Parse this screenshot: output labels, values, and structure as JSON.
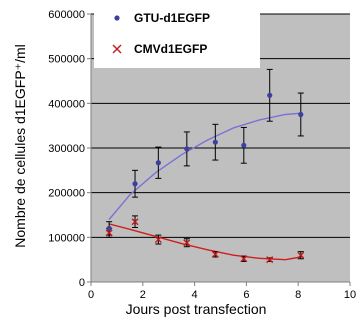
{
  "chart_data": {
    "type": "scatter",
    "title": "",
    "xlabel": "Jours post transfection",
    "ylabel": "Nombre de cellules d1EGFP⁺/ml",
    "xlim": [
      0,
      10
    ],
    "ylim": [
      0,
      600000
    ],
    "x_ticks": [
      0,
      2,
      4,
      6,
      8,
      10
    ],
    "y_ticks": [
      0,
      100000,
      200000,
      300000,
      400000,
      500000,
      600000
    ],
    "x_tick_labels": [
      "0",
      "2",
      "4",
      "6",
      "8",
      "10"
    ],
    "y_tick_labels": [
      "0",
      "100000",
      "200000",
      "300000",
      "400000",
      "500000",
      "600000"
    ],
    "grid": "horizontal",
    "plot_background": "#bfbfbf",
    "legend_position": "top-left",
    "series": [
      {
        "name": "GTU-d1EGFP",
        "marker": "dot",
        "color": "#3f3f9f",
        "trend_color": "#7a72d6",
        "x": [
          0.7,
          1.7,
          2.6,
          3.7,
          4.8,
          5.9,
          6.9,
          8.1
        ],
        "y": [
          120000,
          220000,
          267000,
          298000,
          313000,
          306000,
          418000,
          375000
        ],
        "err": [
          15000,
          30000,
          35000,
          38000,
          40000,
          40000,
          58000,
          48000
        ],
        "trend": [
          [
            0.7,
            140000
          ],
          [
            1.5,
            195000
          ],
          [
            2.5,
            245000
          ],
          [
            3.5,
            285000
          ],
          [
            4.5,
            318000
          ],
          [
            5.5,
            345000
          ],
          [
            6.5,
            363000
          ],
          [
            7.5,
            375000
          ],
          [
            8.1,
            378000
          ]
        ]
      },
      {
        "name": "CMVd1EGFP",
        "marker": "x",
        "color": "#c01a1a",
        "trend_color": "#d01e1e",
        "x": [
          0.7,
          1.7,
          2.6,
          3.7,
          4.8,
          5.9,
          6.9,
          8.1
        ],
        "y": [
          110000,
          135000,
          95000,
          88000,
          62000,
          52000,
          50000,
          60000
        ],
        "err": [
          10000,
          13000,
          10000,
          9000,
          6000,
          6000,
          4000,
          8000
        ],
        "trend": [
          [
            0.7,
            130000
          ],
          [
            1.5,
            118000
          ],
          [
            2.5,
            102000
          ],
          [
            3.5,
            86000
          ],
          [
            4.5,
            72000
          ],
          [
            5.5,
            60000
          ],
          [
            6.5,
            53000
          ],
          [
            7.5,
            50000
          ],
          [
            8.1,
            56000
          ]
        ]
      }
    ]
  }
}
